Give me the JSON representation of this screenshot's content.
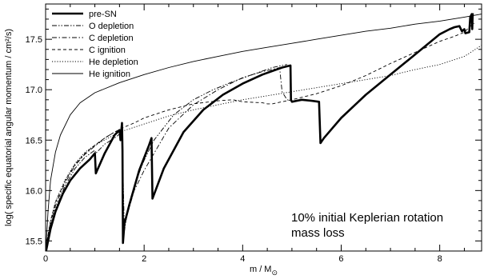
{
  "chart_data": {
    "type": "line",
    "title": "",
    "xlabel_main": "m / M",
    "xlabel_sub": "⊙",
    "ylabel": "log( specific equatorial angular momentum / cm²/s)",
    "xlim": [
      0,
      8.85
    ],
    "ylim": [
      15.4,
      17.85
    ],
    "x_ticks": [
      0,
      2,
      4,
      6,
      8
    ],
    "y_ticks": [
      15.5,
      16.0,
      16.5,
      17.0,
      17.5
    ],
    "x_tick_labels": [
      "0",
      "2",
      "4",
      "6",
      "8"
    ],
    "y_tick_labels": [
      "15.5",
      "16.0",
      "16.5",
      "17.0",
      "17.5"
    ],
    "legend_position": "top-left",
    "annotation": [
      "10% initial Keplerian rotation",
      "mass loss"
    ],
    "series": [
      {
        "name": "pre-SN",
        "style": "solid-thick",
        "x": [
          0.01,
          0.05,
          0.1,
          0.2,
          0.35,
          0.5,
          0.7,
          0.9,
          1.0,
          1.02,
          1.2,
          1.4,
          1.5,
          1.52,
          1.55,
          1.56,
          1.57,
          1.6,
          1.7,
          1.9,
          2.1,
          2.15,
          2.17,
          2.4,
          2.8,
          3.2,
          3.6,
          4.0,
          4.4,
          4.8,
          4.97,
          4.98,
          5.0,
          5.2,
          5.4,
          5.55,
          5.58,
          5.65,
          6.0,
          6.5,
          7.0,
          7.5,
          8.0,
          8.2,
          8.3,
          8.4,
          8.45,
          8.5,
          8.52,
          8.6,
          8.62,
          8.65,
          8.66,
          8.67
        ],
        "y": [
          15.4,
          15.5,
          15.62,
          15.79,
          15.97,
          16.1,
          16.22,
          16.31,
          16.37,
          16.17,
          16.37,
          16.55,
          16.6,
          16.5,
          16.67,
          16.4,
          15.48,
          15.67,
          15.86,
          16.2,
          16.45,
          16.52,
          15.92,
          16.22,
          16.58,
          16.8,
          16.95,
          17.06,
          17.15,
          17.22,
          17.24,
          16.9,
          16.88,
          16.9,
          16.89,
          16.88,
          16.47,
          16.52,
          16.72,
          16.95,
          17.15,
          17.35,
          17.55,
          17.6,
          17.62,
          17.63,
          17.58,
          17.6,
          17.56,
          17.57,
          17.72,
          17.75,
          17.6,
          17.76
        ]
      },
      {
        "name": "O depletion",
        "style": "dash-dot-dot",
        "x": [
          0.01,
          0.1,
          0.2,
          0.4,
          0.6,
          0.8,
          1.0,
          1.02,
          1.2,
          1.4,
          1.5,
          1.55,
          1.6,
          1.65,
          1.8,
          2.0,
          2.2,
          2.6,
          3.0,
          3.4,
          3.8,
          4.2,
          4.6,
          4.8,
          4.9
        ],
        "y": [
          15.42,
          15.65,
          15.82,
          16.05,
          16.22,
          16.33,
          16.4,
          16.37,
          16.46,
          16.52,
          16.56,
          16.6,
          15.6,
          15.75,
          16.05,
          16.3,
          16.5,
          16.75,
          16.9,
          17.0,
          17.08,
          17.15,
          17.22,
          17.24,
          17.25
        ]
      },
      {
        "name": "C depletion",
        "style": "dash-dot",
        "x": [
          0.01,
          0.1,
          0.2,
          0.4,
          0.6,
          0.8,
          1.0,
          1.2,
          1.4,
          1.5,
          1.55,
          1.58,
          1.62,
          1.8,
          2.0,
          2.5,
          3.0,
          3.5,
          4.0,
          4.4,
          4.6,
          4.75,
          4.8,
          4.9,
          5.0
        ],
        "y": [
          15.44,
          15.68,
          15.85,
          16.08,
          16.25,
          16.36,
          16.44,
          16.52,
          16.58,
          16.6,
          16.62,
          15.65,
          15.7,
          16.0,
          16.2,
          16.62,
          16.85,
          17.0,
          17.12,
          17.18,
          17.2,
          17.22,
          16.98,
          16.9,
          16.89
        ]
      },
      {
        "name": "C ignition",
        "style": "dashed",
        "x": [
          0.01,
          0.1,
          0.2,
          0.4,
          0.6,
          0.8,
          1.0,
          1.2,
          1.4,
          1.6,
          1.8,
          2.0,
          2.5,
          3.0,
          3.5,
          3.8,
          4.0,
          4.4,
          4.5,
          4.6,
          4.8,
          5.0,
          5.5,
          6.0,
          6.5,
          7.0,
          7.5,
          8.0,
          8.3,
          8.5,
          8.6,
          8.7
        ],
        "y": [
          15.45,
          15.7,
          15.88,
          16.1,
          16.26,
          16.37,
          16.45,
          16.52,
          16.58,
          16.63,
          16.67,
          16.72,
          16.8,
          16.86,
          16.89,
          16.9,
          16.88,
          16.87,
          16.86,
          16.86,
          16.88,
          16.9,
          16.96,
          17.04,
          17.14,
          17.26,
          17.37,
          17.48,
          17.53,
          17.57,
          17.62,
          17.66
        ]
      },
      {
        "name": "He depletion",
        "style": "dotted",
        "x": [
          0.01,
          0.1,
          0.2,
          0.4,
          0.6,
          0.8,
          1.0,
          1.5,
          2.0,
          2.5,
          3.0,
          3.5,
          4.0,
          4.5,
          5.0,
          5.5,
          6.0,
          6.5,
          7.0,
          7.5,
          8.0,
          8.5,
          8.85
        ],
        "y": [
          15.45,
          15.7,
          15.89,
          16.11,
          16.27,
          16.38,
          16.45,
          16.58,
          16.66,
          16.74,
          16.8,
          16.85,
          16.9,
          16.94,
          16.98,
          17.02,
          17.06,
          17.1,
          17.14,
          17.2,
          17.25,
          17.33,
          17.44
        ]
      },
      {
        "name": "He ignition",
        "style": "solid-thin",
        "x": [
          0.01,
          0.05,
          0.1,
          0.2,
          0.3,
          0.5,
          0.7,
          1.0,
          1.5,
          2.0,
          2.5,
          3.0,
          3.5,
          4.0,
          4.5,
          5.0,
          5.5,
          6.0,
          6.5,
          7.0,
          7.5,
          8.0,
          8.5,
          8.85
        ],
        "y": [
          15.45,
          15.8,
          16.1,
          16.38,
          16.55,
          16.75,
          16.87,
          16.97,
          17.07,
          17.15,
          17.22,
          17.28,
          17.33,
          17.38,
          17.42,
          17.46,
          17.5,
          17.54,
          17.58,
          17.61,
          17.65,
          17.68,
          17.72,
          17.75
        ]
      }
    ]
  }
}
